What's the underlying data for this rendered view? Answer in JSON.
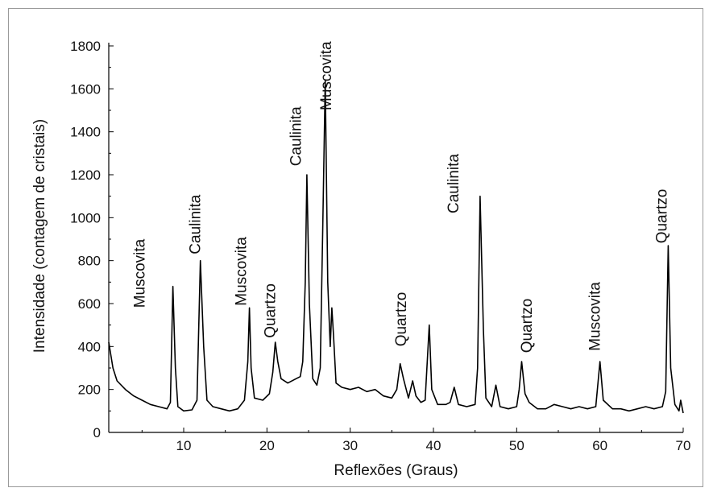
{
  "chart_data": {
    "type": "line",
    "title": "",
    "xlabel": "Reflexões (Graus)",
    "ylabel": "Intensidade (contagem de cristais)",
    "xlim": [
      1,
      70
    ],
    "ylim": [
      0,
      1800
    ],
    "x_ticks": [
      10,
      20,
      30,
      40,
      50,
      60,
      70
    ],
    "y_ticks": [
      0,
      200,
      400,
      600,
      800,
      1000,
      1200,
      1400,
      1600,
      1800
    ],
    "grid": false,
    "line_color": "#000000",
    "series": [
      {
        "values": [
          [
            1.0,
            420
          ],
          [
            1.5,
            300
          ],
          [
            2.0,
            240
          ],
          [
            3.0,
            200
          ],
          [
            4.0,
            170
          ],
          [
            5.0,
            150
          ],
          [
            6.0,
            130
          ],
          [
            7.0,
            120
          ],
          [
            8.0,
            110
          ],
          [
            8.4,
            140
          ],
          [
            8.7,
            680
          ],
          [
            9.0,
            300
          ],
          [
            9.3,
            120
          ],
          [
            10.0,
            100
          ],
          [
            11.0,
            105
          ],
          [
            11.6,
            150
          ],
          [
            12.0,
            800
          ],
          [
            12.4,
            400
          ],
          [
            12.8,
            150
          ],
          [
            13.5,
            120
          ],
          [
            14.5,
            110
          ],
          [
            15.5,
            100
          ],
          [
            16.5,
            110
          ],
          [
            17.3,
            150
          ],
          [
            17.7,
            330
          ],
          [
            17.9,
            580
          ],
          [
            18.1,
            300
          ],
          [
            18.5,
            160
          ],
          [
            19.5,
            150
          ],
          [
            20.3,
            180
          ],
          [
            20.7,
            280
          ],
          [
            21.0,
            420
          ],
          [
            21.3,
            330
          ],
          [
            21.7,
            250
          ],
          [
            22.5,
            230
          ],
          [
            23.5,
            250
          ],
          [
            24.0,
            260
          ],
          [
            24.3,
            330
          ],
          [
            24.6,
            700
          ],
          [
            24.8,
            1200
          ],
          [
            25.1,
            600
          ],
          [
            25.5,
            250
          ],
          [
            26.0,
            220
          ],
          [
            26.4,
            300
          ],
          [
            26.7,
            950
          ],
          [
            27.0,
            1640
          ],
          [
            27.3,
            700
          ],
          [
            27.6,
            400
          ],
          [
            27.8,
            580
          ],
          [
            28.0,
            450
          ],
          [
            28.3,
            230
          ],
          [
            29.0,
            210
          ],
          [
            30.0,
            200
          ],
          [
            31.0,
            210
          ],
          [
            32.0,
            190
          ],
          [
            33.0,
            200
          ],
          [
            34.0,
            170
          ],
          [
            35.0,
            160
          ],
          [
            35.6,
            200
          ],
          [
            36.0,
            320
          ],
          [
            36.4,
            250
          ],
          [
            37.0,
            160
          ],
          [
            37.5,
            240
          ],
          [
            37.9,
            170
          ],
          [
            38.5,
            140
          ],
          [
            39.0,
            150
          ],
          [
            39.5,
            500
          ],
          [
            39.8,
            200
          ],
          [
            40.5,
            130
          ],
          [
            41.5,
            130
          ],
          [
            42.0,
            140
          ],
          [
            42.5,
            210
          ],
          [
            43.0,
            130
          ],
          [
            44.0,
            120
          ],
          [
            45.0,
            130
          ],
          [
            45.3,
            300
          ],
          [
            45.6,
            1100
          ],
          [
            46.0,
            480
          ],
          [
            46.3,
            160
          ],
          [
            47.0,
            120
          ],
          [
            47.5,
            220
          ],
          [
            48.0,
            120
          ],
          [
            49.0,
            110
          ],
          [
            50.0,
            120
          ],
          [
            50.3,
            200
          ],
          [
            50.6,
            330
          ],
          [
            51.0,
            180
          ],
          [
            51.5,
            140
          ],
          [
            52.5,
            110
          ],
          [
            53.5,
            110
          ],
          [
            54.5,
            130
          ],
          [
            55.5,
            120
          ],
          [
            56.5,
            110
          ],
          [
            57.5,
            120
          ],
          [
            58.5,
            110
          ],
          [
            59.5,
            120
          ],
          [
            60.0,
            330
          ],
          [
            60.4,
            150
          ],
          [
            61.5,
            110
          ],
          [
            62.5,
            110
          ],
          [
            63.5,
            100
          ],
          [
            64.5,
            110
          ],
          [
            65.5,
            120
          ],
          [
            66.5,
            110
          ],
          [
            67.5,
            120
          ],
          [
            67.9,
            190
          ],
          [
            68.2,
            870
          ],
          [
            68.5,
            300
          ],
          [
            69.0,
            130
          ],
          [
            69.5,
            100
          ],
          [
            69.7,
            150
          ],
          [
            70.0,
            90
          ]
        ]
      }
    ],
    "annotations": [
      {
        "text": "Muscovita",
        "x": 5.3,
        "y": 580
      },
      {
        "text": "Caulinita",
        "x": 12.0,
        "y": 830
      },
      {
        "text": "Muscovita",
        "x": 17.5,
        "y": 590
      },
      {
        "text": "Quartzo",
        "x": 21.0,
        "y": 440
      },
      {
        "text": "Caulinita",
        "x": 24.1,
        "y": 1240
      },
      {
        "text": "Muscovita",
        "x": 27.7,
        "y": 1500
      },
      {
        "text": "Quartzo",
        "x": 36.7,
        "y": 400
      },
      {
        "text": "Caulinita",
        "x": 43.0,
        "y": 1020
      },
      {
        "text": "Quartzo",
        "x": 51.8,
        "y": 370
      },
      {
        "text": "Muscovita",
        "x": 60.0,
        "y": 380
      },
      {
        "text": "Quartzo",
        "x": 68.0,
        "y": 880
      }
    ]
  }
}
